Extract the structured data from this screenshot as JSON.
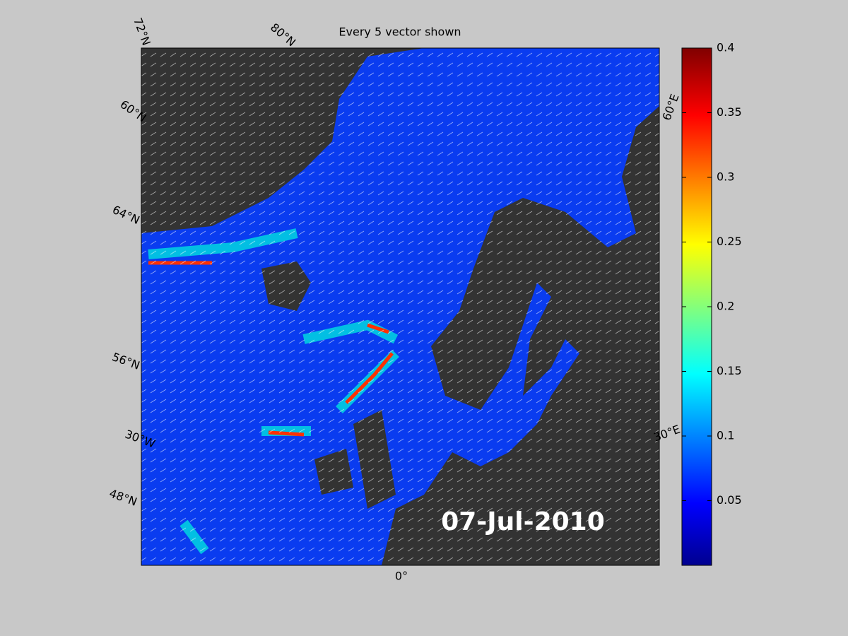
{
  "map": {
    "title": "Every 5 vector shown",
    "date_label": "07-Jul-2010",
    "graticule_labels": [
      "72°N",
      "80°N",
      "60°N",
      "64°N",
      "56°N",
      "30°W",
      "48°N",
      "0°",
      "30°E",
      "60°E"
    ]
  },
  "colorbar": {
    "lim": [
      0,
      0.4
    ],
    "ticks": [
      0.05,
      0.1,
      0.15,
      0.2,
      0.25,
      0.3,
      0.35,
      0.4
    ]
  }
}
